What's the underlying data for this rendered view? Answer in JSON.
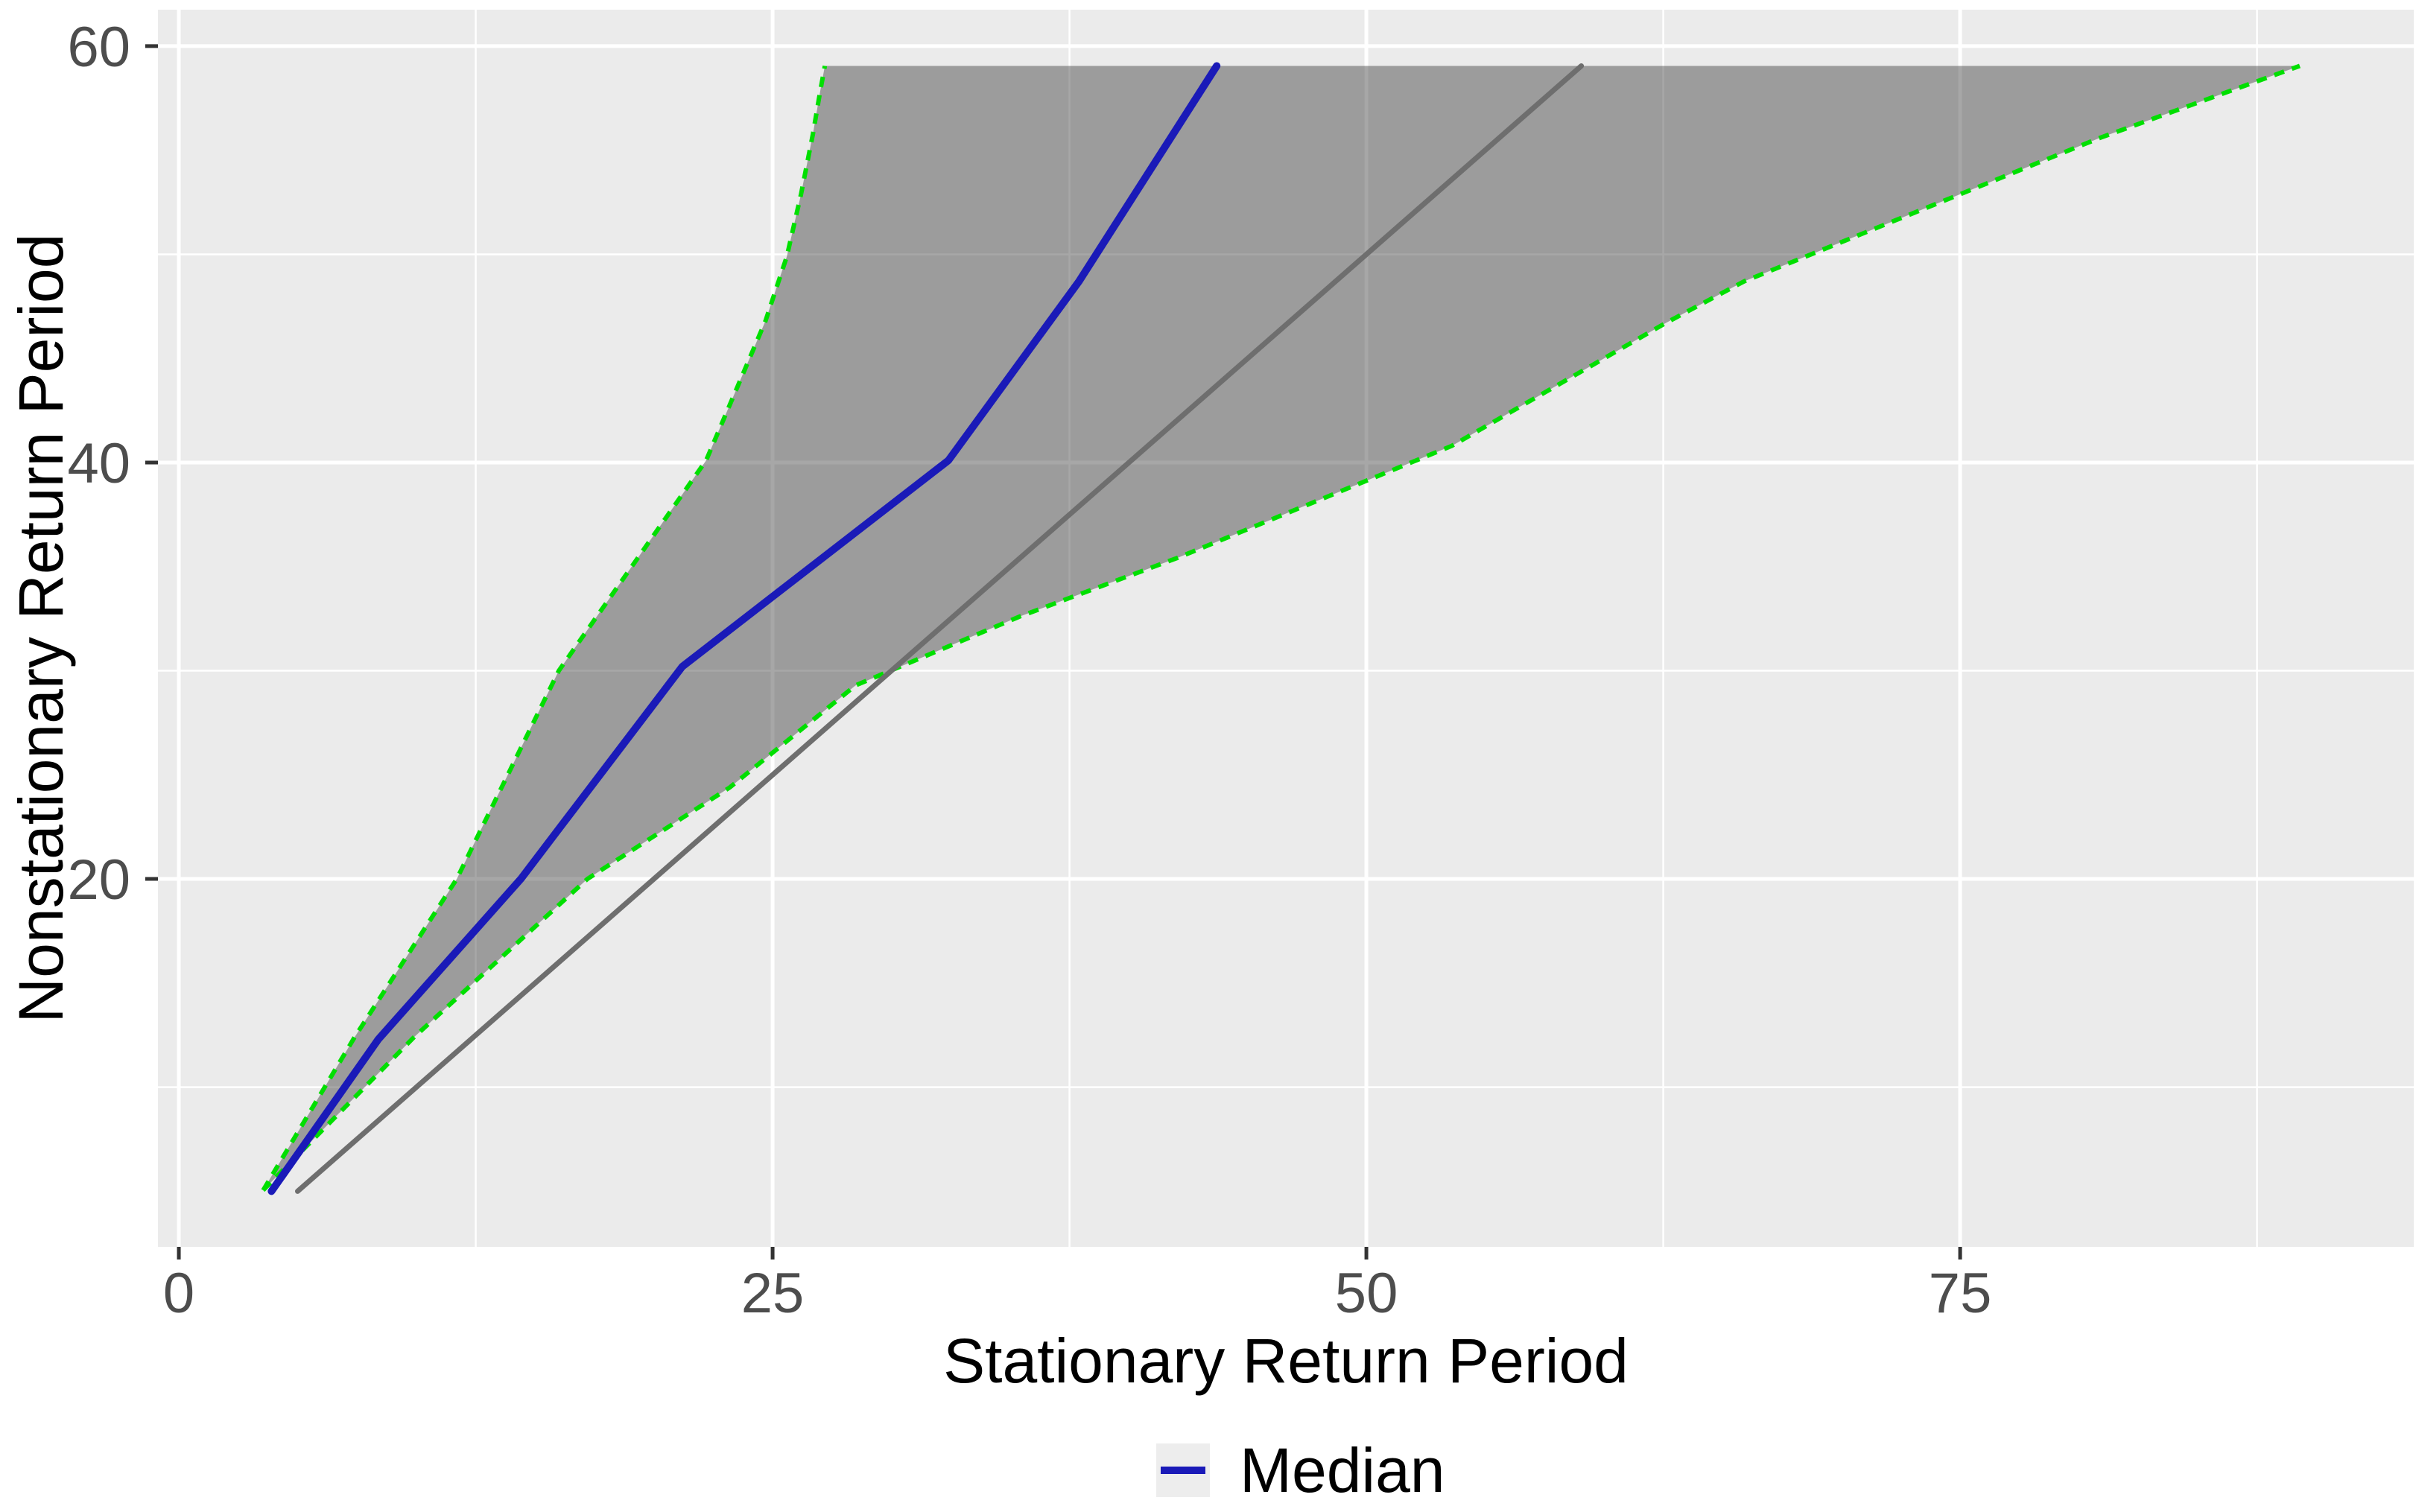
{
  "chart_data": {
    "type": "line",
    "title": "",
    "xlabel": "Stationary Return Period",
    "ylabel": "Nonstationary Return Period",
    "x_ticks": [
      0,
      25,
      50,
      75
    ],
    "y_ticks": [
      60,
      40,
      20
    ],
    "x_minor_ticks": [
      12.5,
      37.5,
      62.5,
      87.5
    ],
    "y_minor_ticks": [
      10,
      30,
      50
    ],
    "xlim": [
      -0.88,
      94.1
    ],
    "ylim": [
      2.33,
      61.75
    ],
    "grid": true,
    "panel_bg": "#EBEBEB",
    "gridline_color": "#FFFFFF",
    "tick_text_color": "#4D4D4D",
    "tick_mark_color": "#333333",
    "band": {
      "name": "confidence-band",
      "fill": "rgba(60,60,60,0.45)",
      "top_y": 59.05,
      "upper_boundary": [
        [
          3.55,
          5.05
        ],
        [
          7.4,
          12.4
        ],
        [
          11.7,
          20.0
        ],
        [
          16.0,
          30.0
        ],
        [
          22.2,
          40.1
        ],
        [
          24.7,
          46.8
        ],
        [
          25.6,
          49.9
        ],
        [
          26.2,
          52.9
        ],
        [
          26.7,
          55.8
        ],
        [
          27.0,
          57.8
        ],
        [
          27.2,
          59.05
        ]
      ],
      "lower_boundary": [
        [
          3.55,
          5.05
        ],
        [
          9.9,
          12.4
        ],
        [
          17.2,
          20.0
        ],
        [
          23.2,
          24.4
        ],
        [
          28.5,
          29.3
        ],
        [
          35.4,
          32.6
        ],
        [
          42.0,
          35.4
        ],
        [
          53.6,
          40.8
        ],
        [
          62.6,
          46.7
        ],
        [
          65.9,
          48.7
        ],
        [
          80.9,
          55.6
        ],
        [
          89.3,
          59.05
        ]
      ],
      "boundary_color": "#00DF00",
      "boundary_dash": "14 11"
    },
    "series": [
      {
        "name": "Median",
        "type": "line",
        "color": "#1A1AB8",
        "width": 10,
        "points": [
          [
            3.9,
            5.0
          ],
          [
            8.4,
            12.3
          ],
          [
            14.4,
            20.0
          ],
          [
            21.2,
            30.2
          ],
          [
            32.4,
            40.1
          ],
          [
            37.9,
            48.7
          ],
          [
            43.7,
            59.05
          ]
        ]
      },
      {
        "name": "identity-line",
        "type": "line",
        "color": "#6E6E6E",
        "width": 7,
        "points": [
          [
            5.0,
            5.0
          ],
          [
            59.05,
            59.05
          ]
        ]
      }
    ],
    "legend": {
      "position": "bottom-center",
      "key_bg": "#EDEDED",
      "entries": [
        {
          "label": "Median",
          "color": "#1A1AB8"
        }
      ]
    }
  }
}
